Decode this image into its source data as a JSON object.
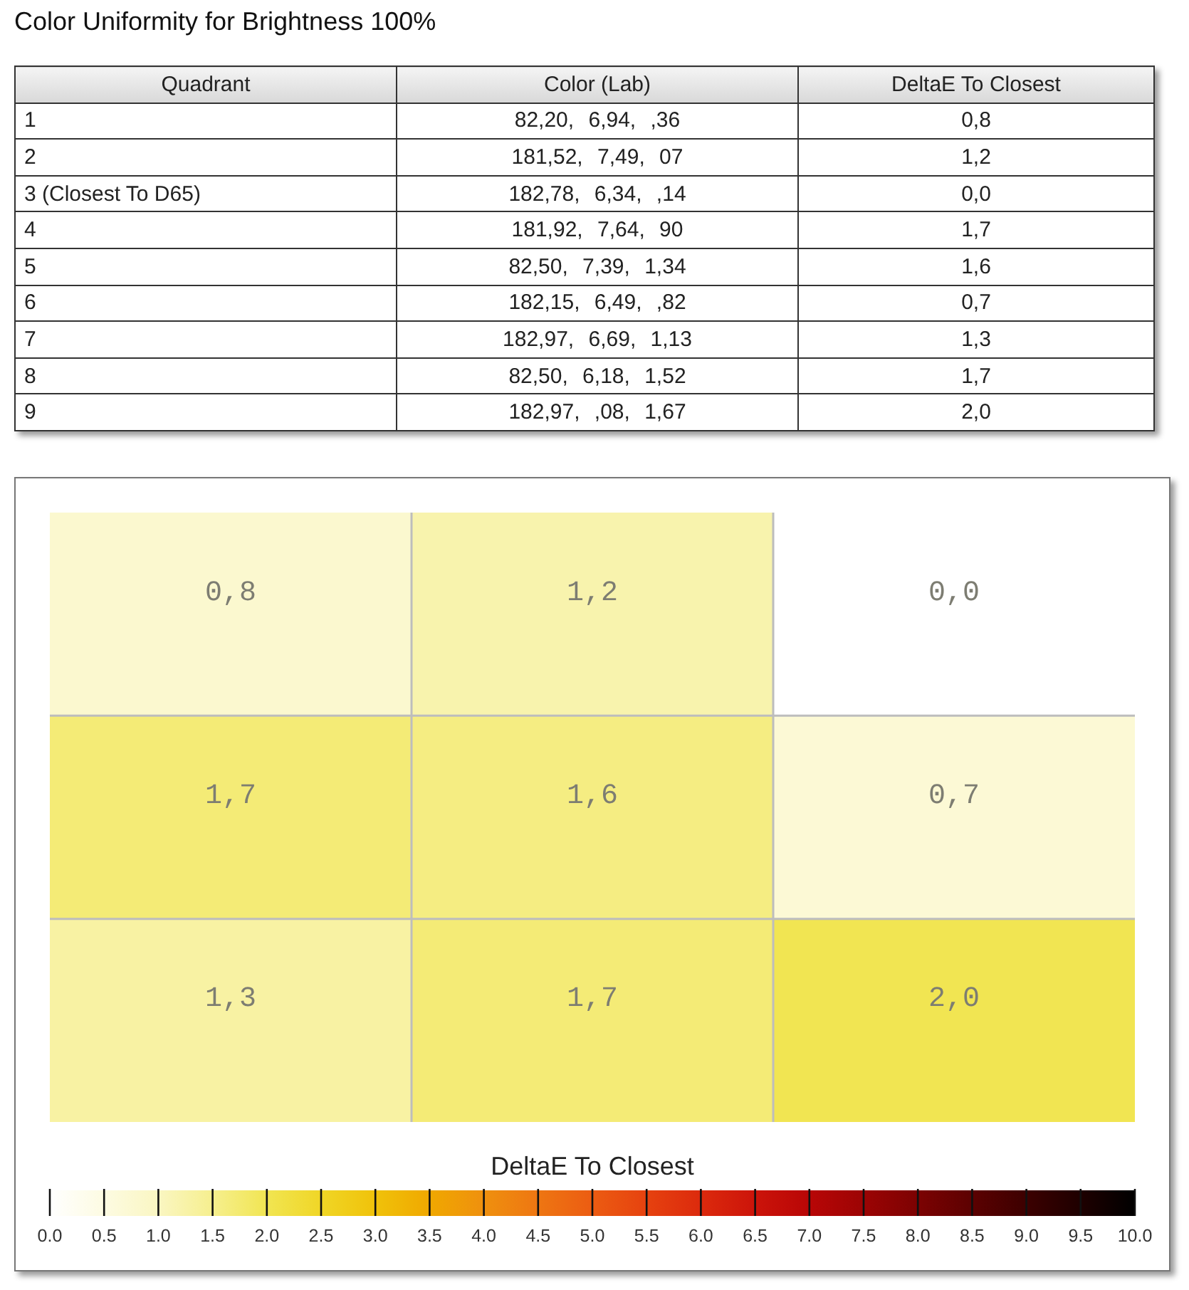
{
  "chart_data": [
    {
      "type": "other",
      "title": "Color Uniformity for Brightness 100%",
      "categories": [
        "1",
        "2",
        "3 (Closest To D65)",
        "4",
        "5",
        "6",
        "7",
        "8",
        "9"
      ],
      "annotations": [
        "Quadrant",
        "Color (Lab)",
        "DeltaE To Closest",
        "82,20, 6,94, ,36",
        "181,52, 7,49, 07",
        "182,78, 6,34, ,14",
        "181,92, 7,64, 90",
        "82,50, 7,39, 1,34",
        "182,15, 6,49, ,82",
        "182,97, 6,69, 1,13",
        "82,50, 6,18, 1,52",
        "182,97, ,08, 1,67",
        "0,8",
        "1,2",
        "0,0",
        "1,7",
        "1,6",
        "0,7",
        "1,3",
        "1,7",
        "2,0"
      ]
    },
    {
      "type": "heatmap",
      "categories": [
        null,
        null,
        null
      ],
      "y_categories": [
        null,
        null,
        null
      ],
      "cells": [
        [
          0.8,
          1.2,
          0.0
        ],
        [
          1.7,
          1.6,
          0.7
        ],
        [
          1.3,
          1.7,
          2.0
        ]
      ],
      "cell_labels": [
        [
          "0,8",
          "1,2",
          "0,0"
        ],
        [
          "1,7",
          "1,6",
          "0,7"
        ],
        [
          "1,3",
          "1,7",
          "2,0"
        ]
      ],
      "clabel": "DeltaE To Closest",
      "clim": [
        0,
        10
      ],
      "cticks": [
        {
          "value": 0,
          "label": "0.0"
        },
        {
          "value": 0.5,
          "label": "0.5"
        },
        {
          "value": 1,
          "label": "1.0"
        },
        {
          "value": 1.5,
          "label": "1.5"
        },
        {
          "value": 2,
          "label": "2.0"
        },
        {
          "value": 2.5,
          "label": "2.5"
        },
        {
          "value": 3,
          "label": "3.0"
        },
        {
          "value": 3.5,
          "label": "3.5"
        },
        {
          "value": 4,
          "label": "4.0"
        },
        {
          "value": 4.5,
          "label": "4.5"
        },
        {
          "value": 5,
          "label": "5.0"
        },
        {
          "value": 5.5,
          "label": "5.5"
        },
        {
          "value": 6,
          "label": "6.0"
        },
        {
          "value": 6.5,
          "label": "6.5"
        },
        {
          "value": 7,
          "label": "7.0"
        },
        {
          "value": 7.5,
          "label": "7.5"
        },
        {
          "value": 8,
          "label": "8.0"
        },
        {
          "value": 8.5,
          "label": "8.5"
        },
        {
          "value": 9,
          "label": "9.0"
        },
        {
          "value": 9.5,
          "label": "9.5"
        },
        {
          "value": 10,
          "label": "10.0"
        }
      ],
      "grid": true
    }
  ]
}
